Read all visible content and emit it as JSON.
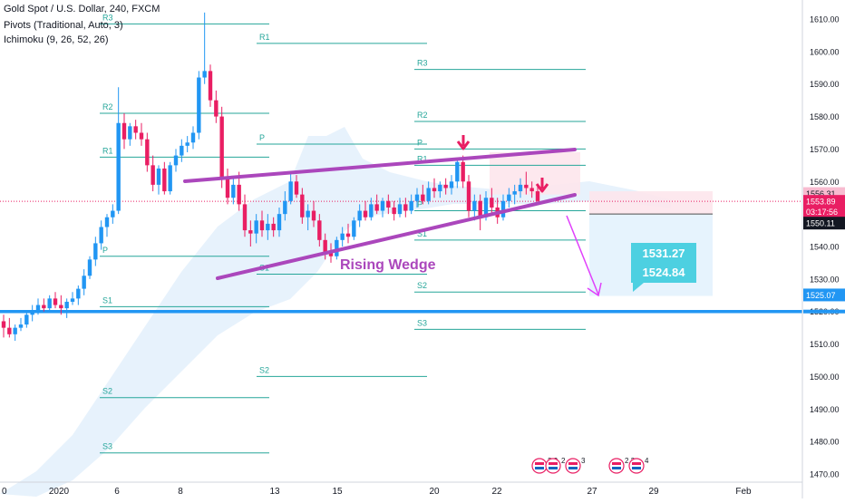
{
  "header": {
    "symbol_title": "Gold Spot / U.S. Dollar, 240, FXCM",
    "indicator_1": "Pivots (Traditional, Auto, 3)",
    "indicator_2": "Ichimoku (9, 26, 52, 26)"
  },
  "colors": {
    "bull": "#2196f3",
    "bear": "#e91e63",
    "pivot_line": "#26a69a",
    "wedge": "#ab47bc",
    "support": "#2196f3",
    "cloud": "#dfeefb",
    "label_box": "#4dd0e1"
  },
  "chart_data": {
    "type": "candlestick",
    "y_axis": {
      "range": [
        1470,
        1615
      ],
      "ticks": [
        "1470.00",
        "1480.00",
        "1490.00",
        "1500.00",
        "1510.00",
        "1520.00",
        "1530.00",
        "1540.00",
        "1550.00",
        "1560.00",
        "1570.00",
        "1580.00",
        "1590.00",
        "1600.00",
        "1610.00"
      ]
    },
    "x_axis": {
      "ticks": [
        "0",
        "2020",
        "6",
        "8",
        "13",
        "15",
        "20",
        "22",
        "27",
        "29",
        "Feb"
      ]
    },
    "ohlc": [
      {
        "o": 1517,
        "h": 1519,
        "l": 1512,
        "c": 1515
      },
      {
        "o": 1515,
        "h": 1518,
        "l": 1512,
        "c": 1513
      },
      {
        "o": 1513,
        "h": 1516,
        "l": 1511,
        "c": 1515
      },
      {
        "o": 1515,
        "h": 1518,
        "l": 1514,
        "c": 1516
      },
      {
        "o": 1516,
        "h": 1520,
        "l": 1515,
        "c": 1519
      },
      {
        "o": 1519,
        "h": 1522,
        "l": 1517,
        "c": 1520
      },
      {
        "o": 1520,
        "h": 1524,
        "l": 1519,
        "c": 1522
      },
      {
        "o": 1522,
        "h": 1524,
        "l": 1520,
        "c": 1521
      },
      {
        "o": 1521,
        "h": 1525,
        "l": 1520,
        "c": 1524
      },
      {
        "o": 1524,
        "h": 1526,
        "l": 1521,
        "c": 1522
      },
      {
        "o": 1522,
        "h": 1525,
        "l": 1519,
        "c": 1521
      },
      {
        "o": 1521,
        "h": 1524,
        "l": 1518,
        "c": 1523
      },
      {
        "o": 1523,
        "h": 1526,
        "l": 1522,
        "c": 1524
      },
      {
        "o": 1524,
        "h": 1528,
        "l": 1522,
        "c": 1527
      },
      {
        "o": 1527,
        "h": 1533,
        "l": 1525,
        "c": 1531
      },
      {
        "o": 1531,
        "h": 1537,
        "l": 1530,
        "c": 1536
      },
      {
        "o": 1536,
        "h": 1543,
        "l": 1534,
        "c": 1541
      },
      {
        "o": 1541,
        "h": 1548,
        "l": 1539,
        "c": 1546
      },
      {
        "o": 1546,
        "h": 1550,
        "l": 1543,
        "c": 1549
      },
      {
        "o": 1549,
        "h": 1553,
        "l": 1547,
        "c": 1551
      },
      {
        "o": 1551,
        "h": 1589,
        "l": 1550,
        "c": 1578
      },
      {
        "o": 1578,
        "h": 1581,
        "l": 1570,
        "c": 1573
      },
      {
        "o": 1573,
        "h": 1578,
        "l": 1571,
        "c": 1577
      },
      {
        "o": 1577,
        "h": 1579,
        "l": 1573,
        "c": 1575
      },
      {
        "o": 1575,
        "h": 1578,
        "l": 1571,
        "c": 1573
      },
      {
        "o": 1573,
        "h": 1575,
        "l": 1563,
        "c": 1565
      },
      {
        "o": 1565,
        "h": 1568,
        "l": 1557,
        "c": 1559
      },
      {
        "o": 1559,
        "h": 1565,
        "l": 1556,
        "c": 1564
      },
      {
        "o": 1564,
        "h": 1566,
        "l": 1556,
        "c": 1557
      },
      {
        "o": 1557,
        "h": 1566,
        "l": 1556,
        "c": 1565
      },
      {
        "o": 1565,
        "h": 1570,
        "l": 1563,
        "c": 1568
      },
      {
        "o": 1568,
        "h": 1573,
        "l": 1566,
        "c": 1571
      },
      {
        "o": 1571,
        "h": 1574,
        "l": 1569,
        "c": 1572
      },
      {
        "o": 1572,
        "h": 1577,
        "l": 1570,
        "c": 1575
      },
      {
        "o": 1575,
        "h": 1594,
        "l": 1573,
        "c": 1592
      },
      {
        "o": 1592,
        "h": 1612,
        "l": 1590,
        "c": 1594
      },
      {
        "o": 1594,
        "h": 1596,
        "l": 1583,
        "c": 1585
      },
      {
        "o": 1585,
        "h": 1588,
        "l": 1578,
        "c": 1580
      },
      {
        "o": 1580,
        "h": 1583,
        "l": 1558,
        "c": 1561
      },
      {
        "o": 1561,
        "h": 1564,
        "l": 1553,
        "c": 1555
      },
      {
        "o": 1555,
        "h": 1561,
        "l": 1553,
        "c": 1559
      },
      {
        "o": 1559,
        "h": 1563,
        "l": 1551,
        "c": 1553
      },
      {
        "o": 1553,
        "h": 1556,
        "l": 1543,
        "c": 1545
      },
      {
        "o": 1545,
        "h": 1548,
        "l": 1540,
        "c": 1544
      },
      {
        "o": 1544,
        "h": 1550,
        "l": 1541,
        "c": 1548
      },
      {
        "o": 1548,
        "h": 1551,
        "l": 1543,
        "c": 1545
      },
      {
        "o": 1545,
        "h": 1550,
        "l": 1542,
        "c": 1547
      },
      {
        "o": 1547,
        "h": 1549,
        "l": 1543,
        "c": 1545
      },
      {
        "o": 1545,
        "h": 1552,
        "l": 1543,
        "c": 1550
      },
      {
        "o": 1550,
        "h": 1557,
        "l": 1548,
        "c": 1554
      },
      {
        "o": 1554,
        "h": 1563,
        "l": 1553,
        "c": 1560
      },
      {
        "o": 1560,
        "h": 1562,
        "l": 1555,
        "c": 1556
      },
      {
        "o": 1556,
        "h": 1558,
        "l": 1547,
        "c": 1549
      },
      {
        "o": 1549,
        "h": 1553,
        "l": 1545,
        "c": 1551
      },
      {
        "o": 1551,
        "h": 1554,
        "l": 1546,
        "c": 1548
      },
      {
        "o": 1548,
        "h": 1550,
        "l": 1540,
        "c": 1542
      },
      {
        "o": 1542,
        "h": 1544,
        "l": 1536,
        "c": 1538
      },
      {
        "o": 1538,
        "h": 1541,
        "l": 1535,
        "c": 1537
      },
      {
        "o": 1537,
        "h": 1543,
        "l": 1536,
        "c": 1542
      },
      {
        "o": 1542,
        "h": 1546,
        "l": 1540,
        "c": 1544
      },
      {
        "o": 1544,
        "h": 1547,
        "l": 1541,
        "c": 1543
      },
      {
        "o": 1543,
        "h": 1549,
        "l": 1542,
        "c": 1548
      },
      {
        "o": 1548,
        "h": 1553,
        "l": 1546,
        "c": 1551
      },
      {
        "o": 1551,
        "h": 1554,
        "l": 1548,
        "c": 1549
      },
      {
        "o": 1549,
        "h": 1555,
        "l": 1548,
        "c": 1553
      },
      {
        "o": 1553,
        "h": 1556,
        "l": 1550,
        "c": 1551
      },
      {
        "o": 1551,
        "h": 1555,
        "l": 1549,
        "c": 1554
      },
      {
        "o": 1554,
        "h": 1556,
        "l": 1550,
        "c": 1552
      },
      {
        "o": 1552,
        "h": 1554,
        "l": 1548,
        "c": 1550
      },
      {
        "o": 1550,
        "h": 1555,
        "l": 1549,
        "c": 1553
      },
      {
        "o": 1553,
        "h": 1555,
        "l": 1549,
        "c": 1551
      },
      {
        "o": 1551,
        "h": 1556,
        "l": 1550,
        "c": 1554
      },
      {
        "o": 1554,
        "h": 1558,
        "l": 1552,
        "c": 1556
      },
      {
        "o": 1556,
        "h": 1559,
        "l": 1553,
        "c": 1554
      },
      {
        "o": 1554,
        "h": 1560,
        "l": 1553,
        "c": 1558
      },
      {
        "o": 1558,
        "h": 1561,
        "l": 1555,
        "c": 1557
      },
      {
        "o": 1557,
        "h": 1560,
        "l": 1555,
        "c": 1559
      },
      {
        "o": 1559,
        "h": 1561,
        "l": 1556,
        "c": 1558
      },
      {
        "o": 1558,
        "h": 1562,
        "l": 1556,
        "c": 1560
      },
      {
        "o": 1560,
        "h": 1567,
        "l": 1558,
        "c": 1566
      },
      {
        "o": 1566,
        "h": 1568,
        "l": 1558,
        "c": 1560
      },
      {
        "o": 1560,
        "h": 1562,
        "l": 1549,
        "c": 1551
      },
      {
        "o": 1551,
        "h": 1556,
        "l": 1548,
        "c": 1554
      },
      {
        "o": 1554,
        "h": 1556,
        "l": 1545,
        "c": 1549
      },
      {
        "o": 1549,
        "h": 1557,
        "l": 1548,
        "c": 1555
      },
      {
        "o": 1555,
        "h": 1558,
        "l": 1550,
        "c": 1552
      },
      {
        "o": 1552,
        "h": 1555,
        "l": 1547,
        "c": 1549
      },
      {
        "o": 1549,
        "h": 1556,
        "l": 1548,
        "c": 1554
      },
      {
        "o": 1554,
        "h": 1558,
        "l": 1552,
        "c": 1556
      },
      {
        "o": 1556,
        "h": 1559,
        "l": 1553,
        "c": 1557
      },
      {
        "o": 1557,
        "h": 1561,
        "l": 1555,
        "c": 1559
      },
      {
        "o": 1559,
        "h": 1563,
        "l": 1556,
        "c": 1558
      },
      {
        "o": 1558,
        "h": 1560,
        "l": 1555,
        "c": 1557
      },
      {
        "o": 1557,
        "h": 1559,
        "l": 1553,
        "c": 1554
      }
    ],
    "pivot_levels": [
      {
        "label": "R3",
        "value": 1608.5
      },
      {
        "label": "R1",
        "value": 1602.5
      },
      {
        "label": "R3",
        "value": 1594.5
      },
      {
        "label": "R2",
        "value": 1581.0
      },
      {
        "label": "R2",
        "value": 1578.5
      },
      {
        "label": "P",
        "value": 1571.5
      },
      {
        "label": "P",
        "value": 1570.0
      },
      {
        "label": "R1",
        "value": 1567.5
      },
      {
        "label": "R1",
        "value": 1565.0
      },
      {
        "label": "P",
        "value": 1551.0
      },
      {
        "label": "S1",
        "value": 1542.0
      },
      {
        "label": "P",
        "value": 1537.0
      },
      {
        "label": "S1",
        "value": 1531.5
      },
      {
        "label": "S2",
        "value": 1526.0
      },
      {
        "label": "S1",
        "value": 1521.5
      },
      {
        "label": "S3",
        "value": 1514.5
      },
      {
        "label": "S2",
        "value": 1500.0
      },
      {
        "label": "S2",
        "value": 1493.5
      },
      {
        "label": "S3",
        "value": 1476.5
      }
    ],
    "annotations": {
      "pattern_label": "Rising Wedge",
      "target_1": "1531.27",
      "target_2": "1524.84",
      "support_level": 1520.0
    },
    "price_badges": [
      {
        "label": "1556.31",
        "value": 1556.3,
        "kind": "light-red"
      },
      {
        "label": "1553.89",
        "value": 1553.9,
        "kind": "red"
      },
      {
        "label": "03:17:56",
        "value": 1550.8,
        "kind": "red"
      },
      {
        "label": "1550.11",
        "value": 1547.2,
        "kind": "dark"
      },
      {
        "label": "1525.07",
        "value": 1525.1,
        "kind": "blue"
      }
    ],
    "event_markers": [
      "3",
      "2",
      "2",
      "3",
      "2",
      "2",
      "4"
    ]
  }
}
